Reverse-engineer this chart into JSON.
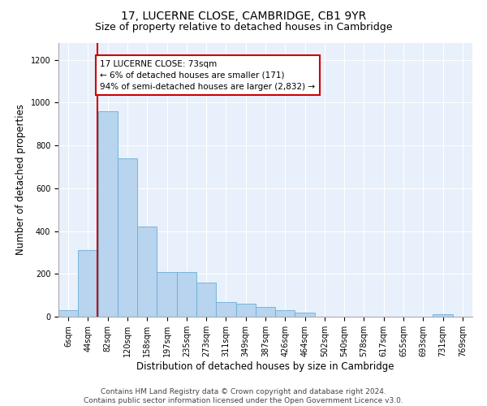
{
  "title": "17, LUCERNE CLOSE, CAMBRIDGE, CB1 9YR",
  "subtitle": "Size of property relative to detached houses in Cambridge",
  "xlabel": "Distribution of detached houses by size in Cambridge",
  "ylabel": "Number of detached properties",
  "bar_color": "#b8d4ee",
  "bar_edge_color": "#6aaed6",
  "background_color": "#e8f0fb",
  "annotation_text": "17 LUCERNE CLOSE: 73sqm\n← 6% of detached houses are smaller (171)\n94% of semi-detached houses are larger (2,832) →",
  "annotation_box_color": "#ffffff",
  "annotation_border_color": "#cc0000",
  "vline_color": "#cc0000",
  "footer_line1": "Contains HM Land Registry data © Crown copyright and database right 2024.",
  "footer_line2": "Contains public sector information licensed under the Open Government Licence v3.0.",
  "bin_labels": [
    "6sqm",
    "44sqm",
    "82sqm",
    "120sqm",
    "158sqm",
    "197sqm",
    "235sqm",
    "273sqm",
    "311sqm",
    "349sqm",
    "387sqm",
    "426sqm",
    "464sqm",
    "502sqm",
    "540sqm",
    "578sqm",
    "617sqm",
    "655sqm",
    "693sqm",
    "731sqm",
    "769sqm"
  ],
  "bar_heights": [
    30,
    310,
    960,
    740,
    420,
    210,
    210,
    160,
    70,
    60,
    45,
    30,
    20,
    0,
    0,
    0,
    0,
    0,
    0,
    10,
    0
  ],
  "ylim": [
    0,
    1280
  ],
  "yticks": [
    0,
    200,
    400,
    600,
    800,
    1000,
    1200
  ],
  "title_fontsize": 10,
  "subtitle_fontsize": 9,
  "axis_label_fontsize": 8.5,
  "tick_fontsize": 7,
  "footer_fontsize": 6.5,
  "vline_x_data": 1.47
}
